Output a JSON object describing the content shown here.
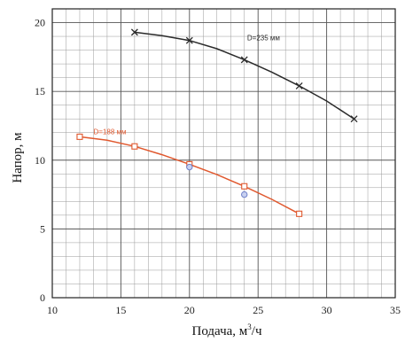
{
  "chart_data": {
    "type": "line",
    "xlabel": "Подача, м",
    "xlabel_sup": "3",
    "xlabel_unit_tail": "/ч",
    "ylabel": "Напор, м",
    "xlim": [
      10,
      35
    ],
    "ylim": [
      0,
      21
    ],
    "x_ticks": [
      "10",
      "15",
      "20",
      "25",
      "30",
      "35"
    ],
    "y_ticks": [
      "0",
      "5",
      "10",
      "15",
      "20"
    ],
    "grid": true,
    "series": [
      {
        "name": "D=235 мм",
        "color": "#2a2a2a",
        "marker": "cross",
        "points": [
          [
            16,
            19.3
          ],
          [
            20,
            18.7
          ],
          [
            24,
            17.3
          ],
          [
            28,
            15.4
          ],
          [
            32,
            13.0
          ]
        ],
        "curve": [
          [
            16,
            19.3
          ],
          [
            18,
            19.05
          ],
          [
            20,
            18.7
          ],
          [
            22,
            18.1
          ],
          [
            24,
            17.3
          ],
          [
            26,
            16.4
          ],
          [
            28,
            15.4
          ],
          [
            30,
            14.3
          ],
          [
            32,
            13.0
          ]
        ]
      },
      {
        "name": "D=188 мм",
        "color": "#e0582e",
        "marker": "square",
        "points": [
          [
            12,
            11.7
          ],
          [
            16,
            11.0
          ],
          [
            20,
            9.7
          ],
          [
            24,
            8.1
          ],
          [
            28,
            6.1
          ]
        ],
        "curve": [
          [
            12,
            11.7
          ],
          [
            14,
            11.45
          ],
          [
            16,
            11.0
          ],
          [
            18,
            10.4
          ],
          [
            20,
            9.7
          ],
          [
            22,
            8.95
          ],
          [
            24,
            8.1
          ],
          [
            26,
            7.15
          ],
          [
            28,
            6.1
          ]
        ]
      },
      {
        "name": "",
        "color": "#6f80c9",
        "marker": "circle",
        "points": [
          [
            20,
            9.5
          ],
          [
            24,
            7.5
          ]
        ]
      }
    ]
  }
}
